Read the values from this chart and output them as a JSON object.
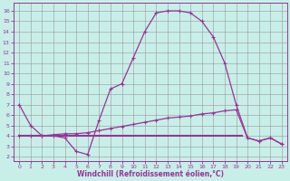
{
  "xlabel": "Windchill (Refroidissement éolien,°C)",
  "bg_color": "#c8eee8",
  "line_color": "#993399",
  "x_ticks": [
    0,
    1,
    2,
    3,
    4,
    5,
    6,
    7,
    8,
    9,
    10,
    11,
    12,
    13,
    14,
    15,
    16,
    17,
    18,
    19,
    20,
    21,
    22,
    23
  ],
  "y_ticks": [
    2,
    3,
    4,
    5,
    6,
    7,
    8,
    9,
    10,
    11,
    12,
    13,
    14,
    15,
    16
  ],
  "xlim": [
    -0.5,
    23.5
  ],
  "ylim": [
    1.6,
    16.8
  ],
  "curve1_x": [
    0,
    1,
    2,
    3,
    4,
    5,
    6,
    7,
    8,
    9,
    10,
    11,
    12,
    13,
    14,
    15,
    16,
    17,
    18,
    19,
    20,
    21,
    22,
    23
  ],
  "curve1_y": [
    7.0,
    5.0,
    4.0,
    4.0,
    3.8,
    2.5,
    2.2,
    5.5,
    8.5,
    9.0,
    11.5,
    14.0,
    15.8,
    16.0,
    16.0,
    15.8,
    15.0,
    13.5,
    11.0,
    7.0,
    3.8,
    3.5,
    3.8,
    3.2
  ],
  "curve2_x": [
    0,
    1,
    2,
    3,
    4,
    5,
    6,
    7,
    8,
    9,
    10,
    11,
    12,
    13,
    14,
    15,
    16,
    17,
    18,
    19,
    20,
    21,
    22,
    23
  ],
  "curve2_y": [
    4.0,
    4.0,
    4.0,
    4.1,
    4.2,
    4.2,
    4.3,
    4.5,
    4.7,
    4.9,
    5.1,
    5.3,
    5.5,
    5.7,
    5.8,
    5.9,
    6.1,
    6.2,
    6.4,
    6.5,
    3.8,
    3.5,
    3.8,
    3.2
  ],
  "curve3_x": [
    0,
    19.5
  ],
  "curve3_y": [
    4.0,
    4.0
  ],
  "marker": "+",
  "linewidth": 0.9,
  "flat_linewidth": 1.5
}
